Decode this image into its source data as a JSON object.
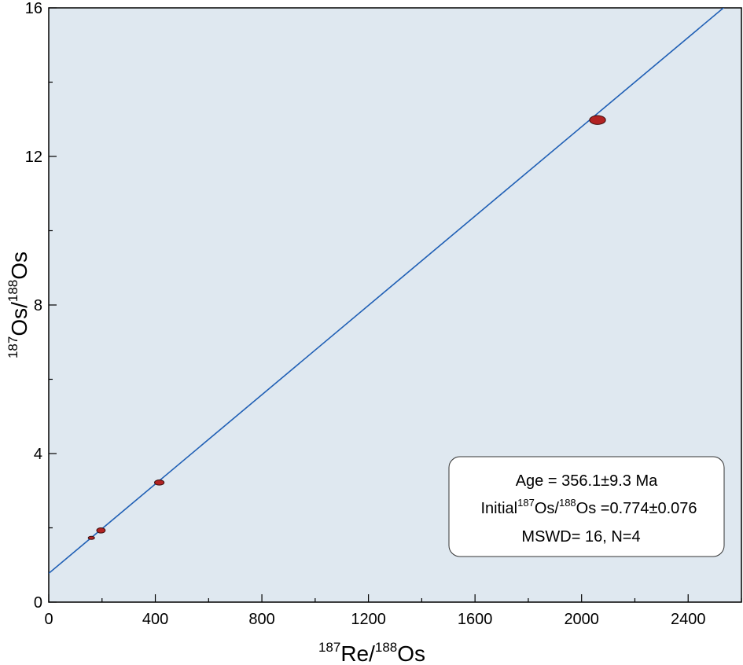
{
  "chart_data": {
    "type": "scatter",
    "title": "",
    "xlabel": {
      "sup1": "187",
      "base1": "Re/",
      "sup2": "188",
      "base2": "Os"
    },
    "ylabel": {
      "sup1": "187",
      "base1": "Os/",
      "sup2": "188",
      "base2": "Os"
    },
    "xlim": [
      0,
      2600
    ],
    "ylim": [
      0,
      16
    ],
    "xticks": [
      0,
      400,
      800,
      1200,
      1600,
      2000,
      2400
    ],
    "yticks": [
      0,
      4,
      8,
      12,
      16
    ],
    "xtick_labels": [
      "0",
      "400",
      "800",
      "1200",
      "1600",
      "2000",
      "2400"
    ],
    "ytick_labels": [
      "0",
      "4",
      "8",
      "12",
      "16"
    ],
    "grid": false,
    "colors": {
      "plot_bg": "#dfe8f0",
      "line": "#1f5fb5",
      "point_fill": "#b22222",
      "point_stroke": "#3a1010"
    },
    "points": [
      {
        "x": 160,
        "y": 1.73,
        "ex": 12,
        "ey": 0.04
      },
      {
        "x": 196,
        "y": 1.93,
        "ex": 16,
        "ey": 0.07
      },
      {
        "x": 415,
        "y": 3.22,
        "ex": 18,
        "ey": 0.07
      },
      {
        "x": 2060,
        "y": 12.98,
        "ex": 30,
        "ey": 0.12
      }
    ],
    "isochron": {
      "intercept": 0.774,
      "slope": 0.006012
    },
    "annotation": {
      "line1": "Age = 356.1±9.3 Ma",
      "line2_prefix": "Initial",
      "line2_sup1": "187",
      "line2_mid": "Os/",
      "line2_sup2": "188",
      "line2_suffix": "Os =0.774±0.076",
      "line3": "MSWD= 16, N=4"
    }
  }
}
